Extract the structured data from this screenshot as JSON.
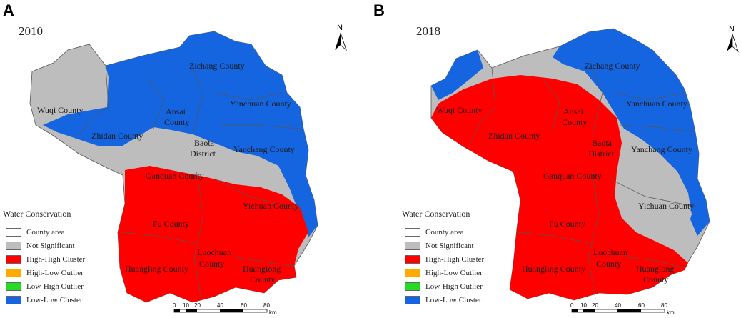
{
  "panels": [
    {
      "letter": "A",
      "year": "2010",
      "counties": [
        "Zichang County",
        "Wuqi County",
        "Ansai",
        "County",
        "Yanchuan County",
        "Zhidan County",
        "Baota",
        "District",
        "Yanchang County",
        "Ganquan County",
        "Yichuan County",
        "Fu County",
        "Luochuan",
        "County",
        "Huangling County",
        "Huanglong",
        "County"
      ]
    },
    {
      "letter": "B",
      "year": "2018",
      "counties": [
        "Zichang County",
        "Wuqi County",
        "Ansai",
        "County",
        "Yanchuan County",
        "Zhidan County",
        "Baota",
        "District",
        "Yanchang County",
        "Ganquan County",
        "Yichuan County",
        "Fu County",
        "Luochuan",
        "County",
        "Huangling County",
        "Huanglong",
        "County"
      ]
    }
  ],
  "legend": {
    "title": "Water Conservation",
    "items": [
      {
        "label": "County area",
        "color": "#ffffff"
      },
      {
        "label": "Not Significant",
        "color": "#bdbdbd"
      },
      {
        "label": "High-High Cluster",
        "color": "#ff0000"
      },
      {
        "label": "High-Low Outlier",
        "color": "#ffaa00"
      },
      {
        "label": "Low-High Outlier",
        "color": "#22dd22"
      },
      {
        "label": "Low-Low Cluster",
        "color": "#1565e0"
      }
    ]
  },
  "north": "N",
  "scale": {
    "ticks": [
      "0",
      "10",
      "20",
      "40",
      "60",
      "80"
    ],
    "unit": "km"
  },
  "colors": {
    "high_high": "#ff0000",
    "low_low": "#1565e0",
    "not_significant": "#bdbdbd",
    "border": "#555555"
  }
}
